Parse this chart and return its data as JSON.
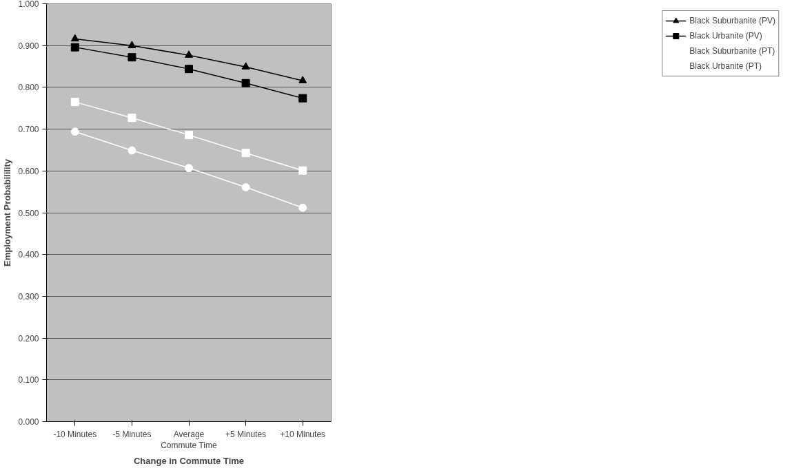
{
  "chart_data": {
    "type": "line",
    "xlabel": "Change in Commute Time",
    "ylabel": "Employment Probabilility",
    "categories": [
      "-10 Minutes",
      "-5 Minutes",
      "Average\nCommute Time",
      "+5 Minutes",
      "+10 Minutes"
    ],
    "ylim": [
      0,
      1
    ],
    "yticks": [
      {
        "value": 0,
        "label": "0.000"
      },
      {
        "value": 0.1,
        "label": "0.100"
      },
      {
        "value": 0.2,
        "label": "0.200"
      },
      {
        "value": 0.3,
        "label": "0.300"
      },
      {
        "value": 0.4,
        "label": "0.400"
      },
      {
        "value": 0.5,
        "label": "0.500"
      },
      {
        "value": 0.6,
        "label": "0.600"
      },
      {
        "value": 0.7,
        "label": "0.700"
      },
      {
        "value": 0.8,
        "label": "0.800"
      },
      {
        "value": 0.9,
        "label": "0.900"
      },
      {
        "value": 1,
        "label": "1.000"
      }
    ],
    "grid": "y",
    "legend": "right",
    "series": [
      {
        "name": "Black Suburbanite (PV)",
        "color": "#000000",
        "marker": "triangle",
        "values": [
          0.916,
          0.9,
          0.877,
          0.849,
          0.816
        ]
      },
      {
        "name": "Black Urbanite (PV)",
        "color": "#000000",
        "marker": "square",
        "values": [
          0.896,
          0.872,
          0.844,
          0.81,
          0.774
        ]
      },
      {
        "name": "Black Suburbanite (PT)",
        "color": "#ffffff",
        "marker": "square",
        "values": [
          0.765,
          0.727,
          0.686,
          0.643,
          0.601
        ]
      },
      {
        "name": "Black Urbanite (PT)",
        "color": "#ffffff",
        "marker": "circle",
        "values": [
          0.694,
          0.649,
          0.607,
          0.561,
          0.512
        ]
      }
    ]
  }
}
